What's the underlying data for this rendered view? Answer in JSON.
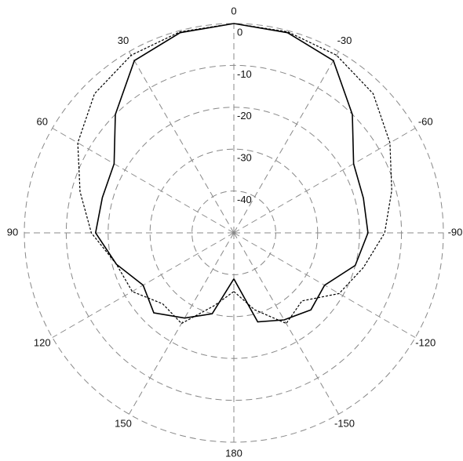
{
  "chart_data": {
    "type": "polar",
    "theta": [
      -180,
      -165,
      -150,
      -135,
      -120,
      -105,
      -90,
      -75,
      -60,
      -45,
      -30,
      -15,
      0,
      15,
      30,
      45,
      60,
      75,
      90,
      105,
      120,
      135,
      150,
      165,
      180
    ],
    "series": [
      {
        "color": "#000000",
        "dash": "solid",
        "values": [
          -39,
          -28,
          -26,
          -24,
          -25,
          -20,
          -18,
          -18,
          -17,
          -10,
          -2.5,
          -0.5,
          0,
          -0.5,
          -2.5,
          -10,
          -17,
          -17.5,
          -17,
          -21,
          -25,
          -23,
          -26.5,
          -30,
          -39
        ]
      },
      {
        "color": "#000000",
        "dash": "dotted",
        "values": [
          -36,
          -31,
          -25,
          -27,
          -21,
          -18,
          -14,
          -11,
          -7,
          -3,
          -1,
          -0.3,
          0,
          -0.3,
          -1,
          -3,
          -7,
          -12,
          -16,
          -21,
          -22,
          -26,
          -25,
          -32,
          -36
        ]
      }
    ],
    "rlim": [
      -50,
      0
    ],
    "rticks": [
      0,
      -10,
      -20,
      -30,
      -40
    ],
    "thetaticks": [
      0,
      30,
      60,
      90,
      120,
      150,
      180,
      -150,
      -120,
      -90,
      -60,
      -30
    ],
    "grid": true
  }
}
